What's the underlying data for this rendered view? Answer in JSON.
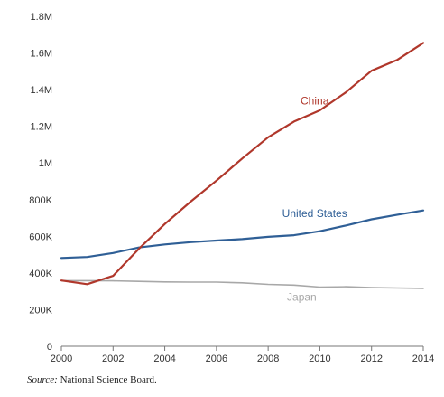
{
  "chart_data": {
    "type": "line",
    "x": [
      2000,
      2001,
      2002,
      2003,
      2004,
      2005,
      2006,
      2007,
      2008,
      2009,
      2010,
      2011,
      2012,
      2013,
      2014
    ],
    "xticks": [
      "2000",
      "2002",
      "2004",
      "2006",
      "2008",
      "2010",
      "2012",
      "2014"
    ],
    "xlim": [
      2000,
      2014
    ],
    "ylim": [
      0,
      1800000
    ],
    "yticks": [
      {
        "value": 0,
        "label": "0"
      },
      {
        "value": 200000,
        "label": "200K"
      },
      {
        "value": 400000,
        "label": "400K"
      },
      {
        "value": 600000,
        "label": "600K"
      },
      {
        "value": 800000,
        "label": "800K"
      },
      {
        "value": 1000000,
        "label": "1M"
      },
      {
        "value": 1200000,
        "label": "1.2M"
      },
      {
        "value": 1400000,
        "label": "1.4M"
      },
      {
        "value": 1600000,
        "label": "1.6M"
      },
      {
        "value": 1800000,
        "label": "1.8M"
      }
    ],
    "grid": false,
    "series": [
      {
        "name": "China",
        "color": "#b0372b",
        "values": [
          359000,
          339000,
          384000,
          532000,
          667000,
          789000,
          904000,
          1025000,
          1140000,
          1226000,
          1287000,
          1385000,
          1503000,
          1563000,
          1655000
        ]
      },
      {
        "name": "United States",
        "color": "#2f5f96",
        "values": [
          482000,
          487000,
          509000,
          539000,
          556000,
          568000,
          577000,
          585000,
          597000,
          606000,
          628000,
          659000,
          693000,
          718000,
          741000
        ]
      },
      {
        "name": "Japan",
        "color": "#a8a8a8",
        "values": [
          358000,
          358000,
          357000,
          354000,
          351000,
          350000,
          350000,
          346000,
          338000,
          334000,
          323000,
          325000,
          320000,
          318000,
          316000
        ]
      }
    ]
  },
  "source": {
    "prefix": "Source:",
    "text": "National Science Board."
  }
}
